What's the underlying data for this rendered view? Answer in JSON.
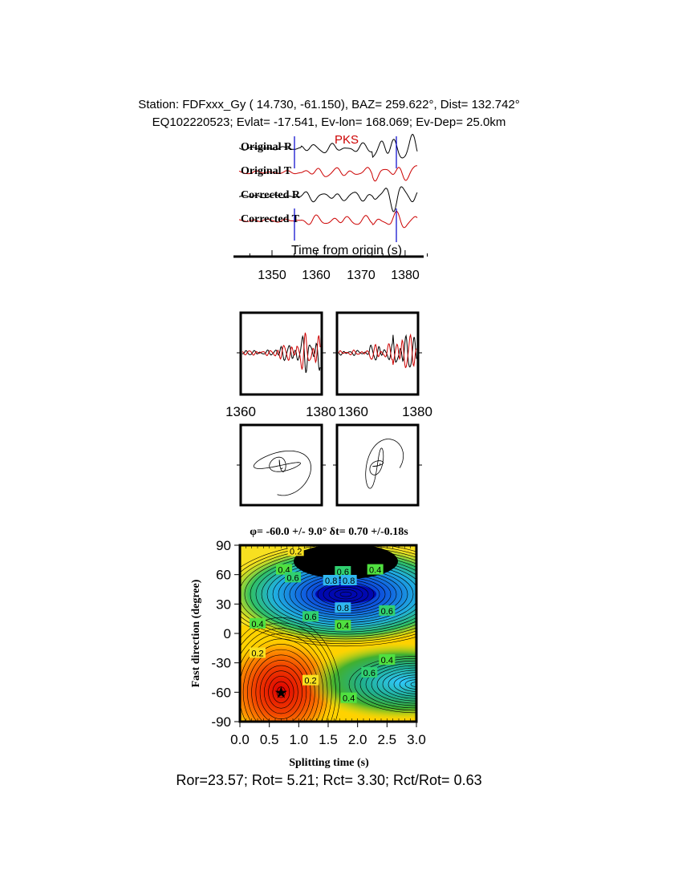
{
  "header": {
    "line1": "Station: FDFxxx_Gy (  14.730,  -61.150), BAZ=  259.622°, Dist=  132.742°",
    "line2": "EQ102220523; Evlat= -17.541, Ev-lon= 168.069; Ev-Dep= 25.0km"
  },
  "waveforms": {
    "phase_label": "PKS",
    "traces": [
      {
        "label": "Original R",
        "color": "#000000"
      },
      {
        "label": "Original T",
        "color": "#cc0000"
      },
      {
        "label": "Corrected R",
        "color": "#000000"
      },
      {
        "label": "Corrected T",
        "color": "#cc0000"
      }
    ],
    "xlabel": "Time from origin (s)",
    "xticks": [
      "1350",
      "1360",
      "1370",
      "1380"
    ],
    "window_marker_color": "#0000cc"
  },
  "comparison_panels": {
    "left_xticks": [
      "1360",
      "1380"
    ],
    "right_xticks": [
      "1360",
      "1380"
    ]
  },
  "bottom_text": "Ror=23.57; Rot= 5.21; Rct= 3.30; Rct/Rot= 0.63",
  "chart_data": {
    "type": "heatmap",
    "title": "φ= -60.0 +/- 9.0° δt= 0.70 +/-0.18s",
    "xlabel": "Splitting time (s)",
    "ylabel": "Fast direction (degree)",
    "xlim": [
      0.0,
      3.0
    ],
    "ylim": [
      -90,
      90
    ],
    "xticks": [
      "0.0",
      "0.5",
      "1.0",
      "1.5",
      "2.0",
      "2.5",
      "3.0"
    ],
    "yticks": [
      "90",
      "60",
      "30",
      "0",
      "-30",
      "-60",
      "-90"
    ],
    "best_fit": {
      "dt": 0.7,
      "phi": -60.0,
      "marker": "star"
    },
    "extrema": [
      {
        "kind": "max",
        "dt": 1.8,
        "phi": 40,
        "color": "#0000cc"
      },
      {
        "kind": "min",
        "dt": 0.7,
        "phi": -60,
        "color": "#e60000"
      },
      {
        "kind": "high",
        "dt": 3.0,
        "phi": -52,
        "color": "#33ccff"
      }
    ],
    "contour_labels": [
      {
        "text": "0.2",
        "dt": 0.95,
        "phi": 84
      },
      {
        "text": "0.4",
        "dt": 0.75,
        "phi": 65
      },
      {
        "text": "0.6",
        "dt": 0.9,
        "phi": 57
      },
      {
        "text": "0.6",
        "dt": 1.75,
        "phi": 63
      },
      {
        "text": "0.8",
        "dt": 1.55,
        "phi": 54
      },
      {
        "text": "0.8",
        "dt": 1.85,
        "phi": 54
      },
      {
        "text": "0.4",
        "dt": 2.3,
        "phi": 65
      },
      {
        "text": "0.8",
        "dt": 1.75,
        "phi": 26
      },
      {
        "text": "0.6",
        "dt": 1.2,
        "phi": 17
      },
      {
        "text": "0.6",
        "dt": 2.5,
        "phi": 23
      },
      {
        "text": "0.4",
        "dt": 0.3,
        "phi": 10
      },
      {
        "text": "0.4",
        "dt": 1.75,
        "phi": 8
      },
      {
        "text": "0.2",
        "dt": 0.3,
        "phi": -20
      },
      {
        "text": "0.2",
        "dt": 1.2,
        "phi": -48
      },
      {
        "text": "0.4",
        "dt": 2.5,
        "phi": -27
      },
      {
        "text": "0.6",
        "dt": 2.2,
        "phi": -40
      },
      {
        "text": "0.4",
        "dt": 1.85,
        "phi": -66
      }
    ]
  }
}
